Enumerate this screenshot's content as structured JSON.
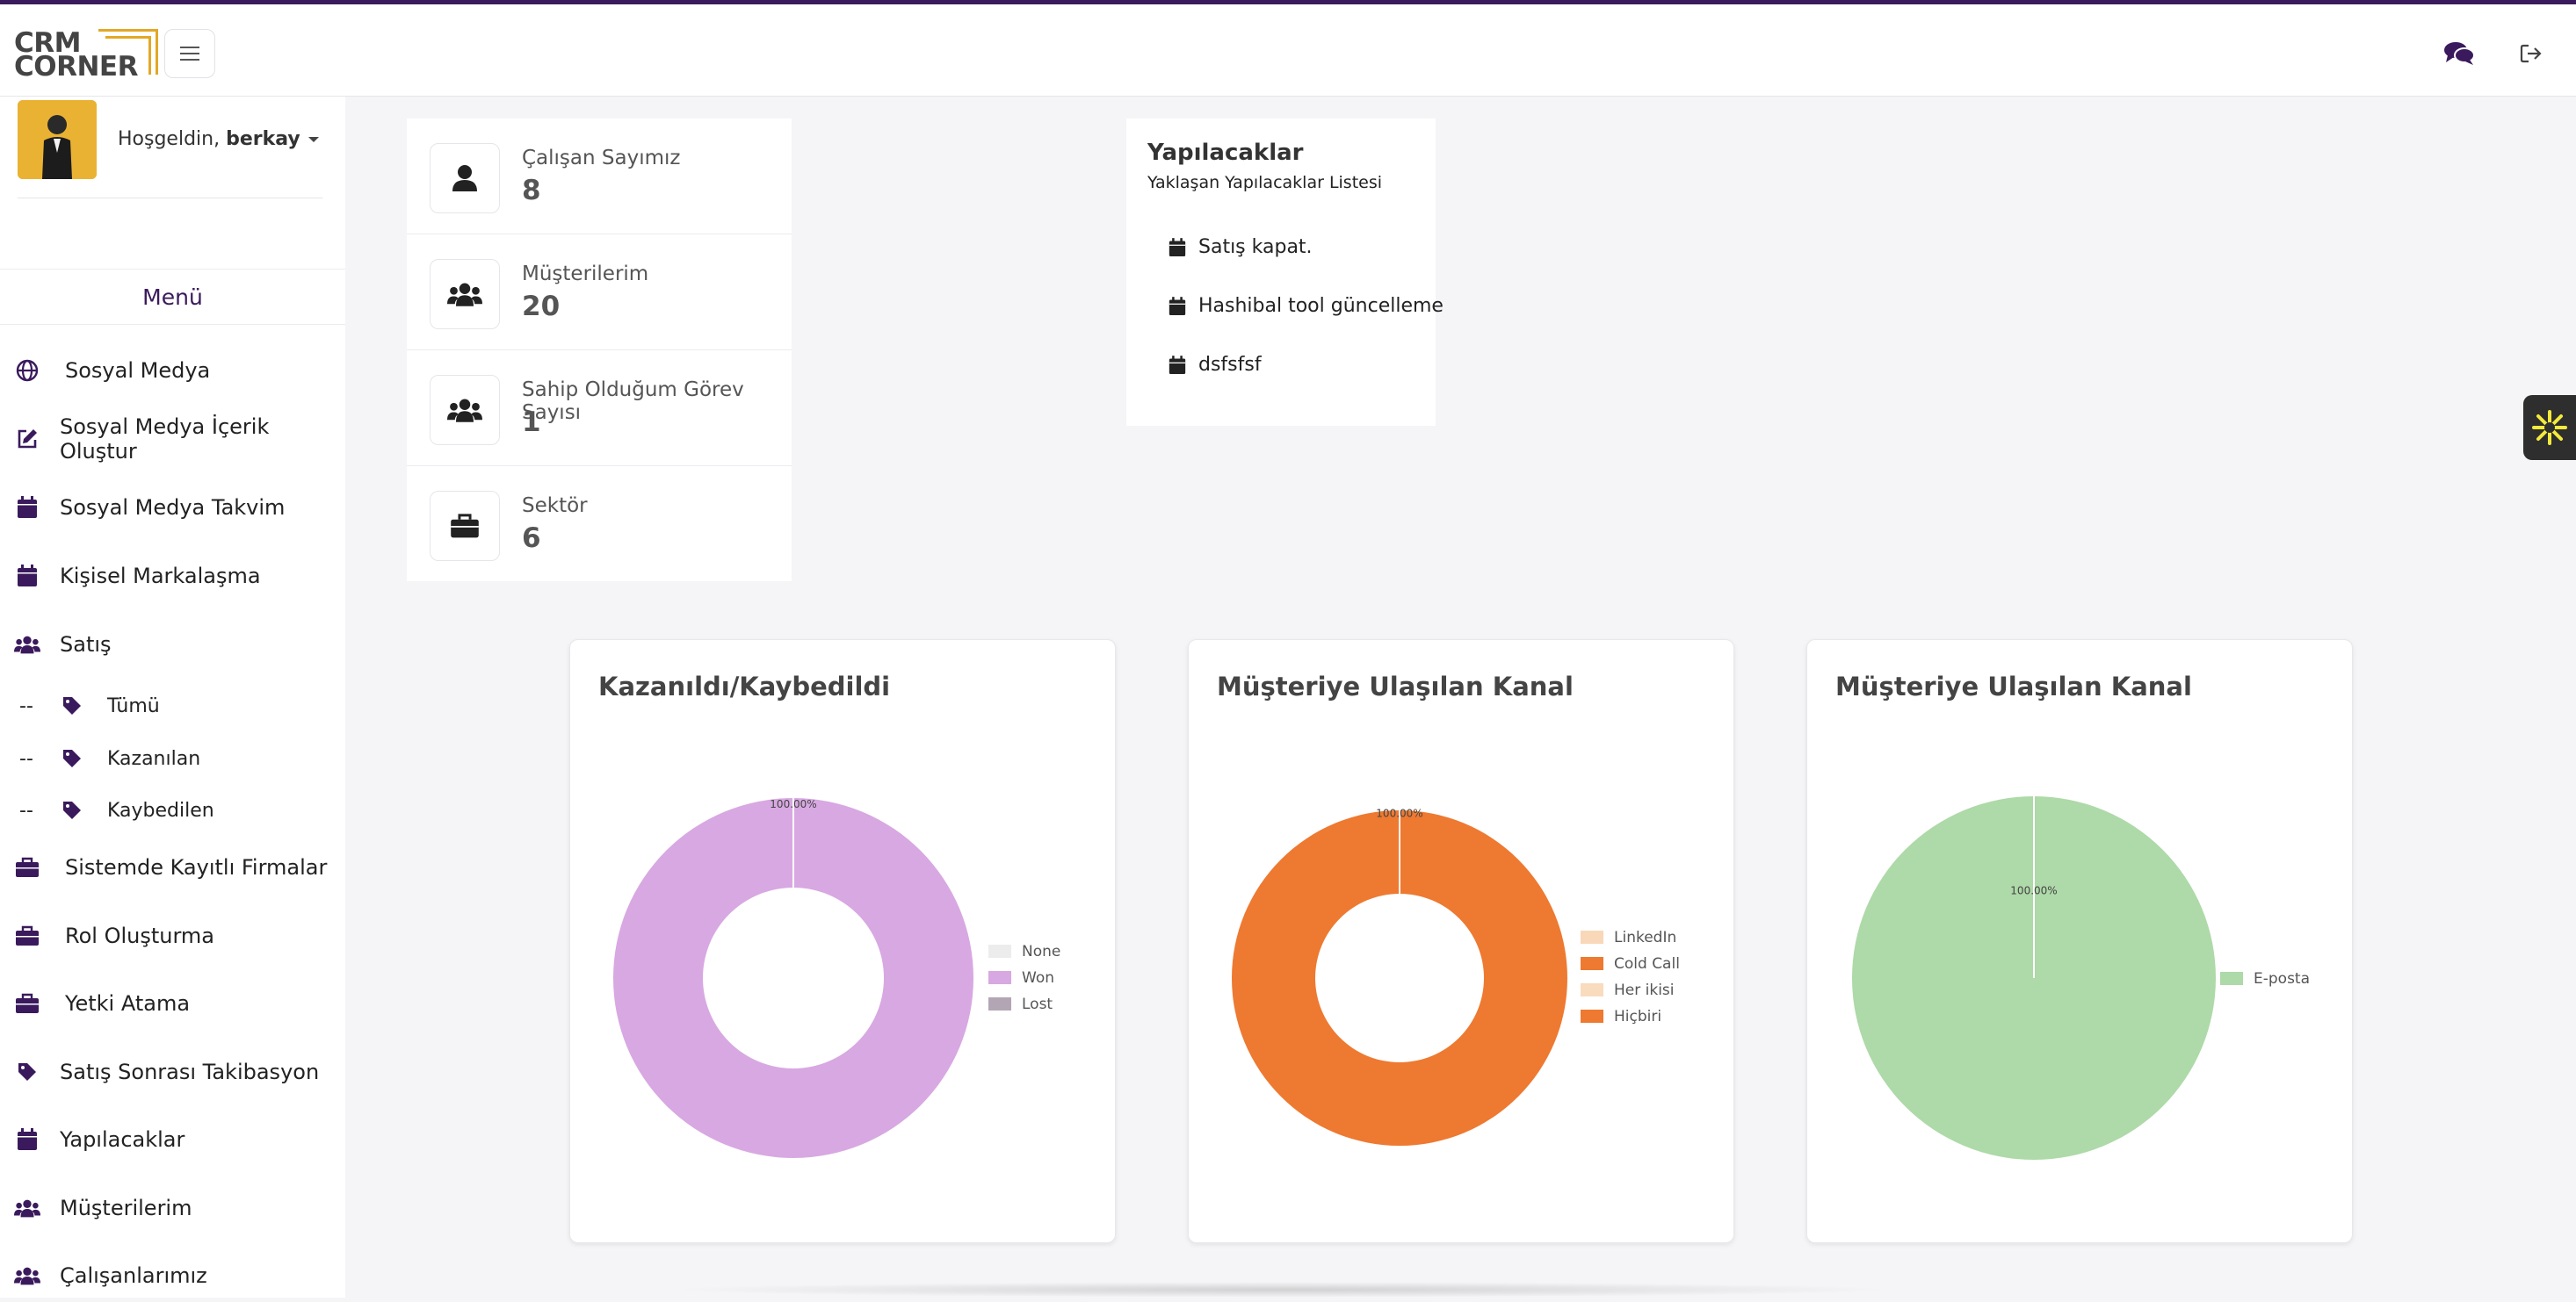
{
  "app": {
    "logo_line1": "CRM",
    "logo_line2": "CORNER"
  },
  "header": {
    "menu_icon": "hamburger-icon",
    "chat_icon": "comments-icon",
    "logout_icon": "sign-out-icon"
  },
  "user": {
    "greeting": "Hoşgeldin,",
    "name": "berkay"
  },
  "sidebar": {
    "menu_title": "Menü",
    "items": [
      {
        "label": "Sosyal Medya",
        "icon": "globe-icon"
      },
      {
        "label": "Sosyal Medya İçerik Oluştur",
        "icon": "edit-icon"
      },
      {
        "label": "Sosyal Medya Takvim",
        "icon": "calendar-icon"
      },
      {
        "label": "Kişisel Markalaşma",
        "icon": "calendar-icon"
      },
      {
        "label": "Satış",
        "icon": "users-icon"
      },
      {
        "label": "Sistemde Kayıtlı Firmalar",
        "icon": "briefcase-icon"
      },
      {
        "label": "Rol Oluşturma",
        "icon": "briefcase-icon"
      },
      {
        "label": "Yetki Atama",
        "icon": "briefcase-icon"
      },
      {
        "label": "Satış Sonrası Takibasyon",
        "icon": "tag-icon"
      },
      {
        "label": "Yapılacaklar",
        "icon": "calendar-icon"
      },
      {
        "label": "Müşterilerim",
        "icon": "users-icon"
      },
      {
        "label": "Çalışanlarımız",
        "icon": "users-icon"
      }
    ],
    "sub_items": [
      {
        "dash": "--",
        "label": "Tümü",
        "icon": "tag-icon"
      },
      {
        "dash": "--",
        "label": "Kazanılan",
        "icon": "tag-icon"
      },
      {
        "dash": "--",
        "label": "Kaybedilen",
        "icon": "tag-icon"
      }
    ]
  },
  "stats": [
    {
      "label": "Çalışan Sayımız",
      "value": "8",
      "icon": "user-icon"
    },
    {
      "label": "Müşterilerim",
      "value": "20",
      "icon": "users-icon"
    },
    {
      "label": "Sahip Olduğum Görev Sayısı",
      "value": "1",
      "icon": "users-icon"
    },
    {
      "label": "Sektör",
      "value": "6",
      "icon": "briefcase-icon"
    }
  ],
  "todo": {
    "title": "Yapılacaklar",
    "subtitle": "Yaklaşan Yapılacaklar Listesi",
    "items": [
      "Satış kapat.",
      "Hashibal tool güncelleme",
      "dsfsfsf"
    ]
  },
  "chart_data": [
    {
      "type": "pie",
      "title": "Kazanıldı/Kaybedildi",
      "donut": true,
      "labels": [
        "None",
        "Won",
        "Lost"
      ],
      "values": [
        0,
        100,
        0
      ],
      "colors": [
        "#ececec",
        "#d8a8e2",
        "#b3a6b4"
      ],
      "data_label": "100.00%",
      "legend": "right"
    },
    {
      "type": "pie",
      "title": "Müşteriye Ulaşılan Kanal",
      "donut": true,
      "labels": [
        "LinkedIn",
        "Cold Call",
        "Her ikisi",
        "Hiçbiri"
      ],
      "values": [
        0,
        100,
        0,
        0
      ],
      "colors": [
        "#f8d8b8",
        "#ee7930",
        "#f9dbbd",
        "#ee7930"
      ],
      "data_label": "100.00%",
      "legend": "right"
    },
    {
      "type": "pie",
      "title": "Müşteriye Ulaşılan Kanal",
      "donut": false,
      "labels": [
        "E-posta"
      ],
      "values": [
        100
      ],
      "colors": [
        "#aed9a8"
      ],
      "data_label": "100.00%",
      "legend": "right"
    }
  ]
}
